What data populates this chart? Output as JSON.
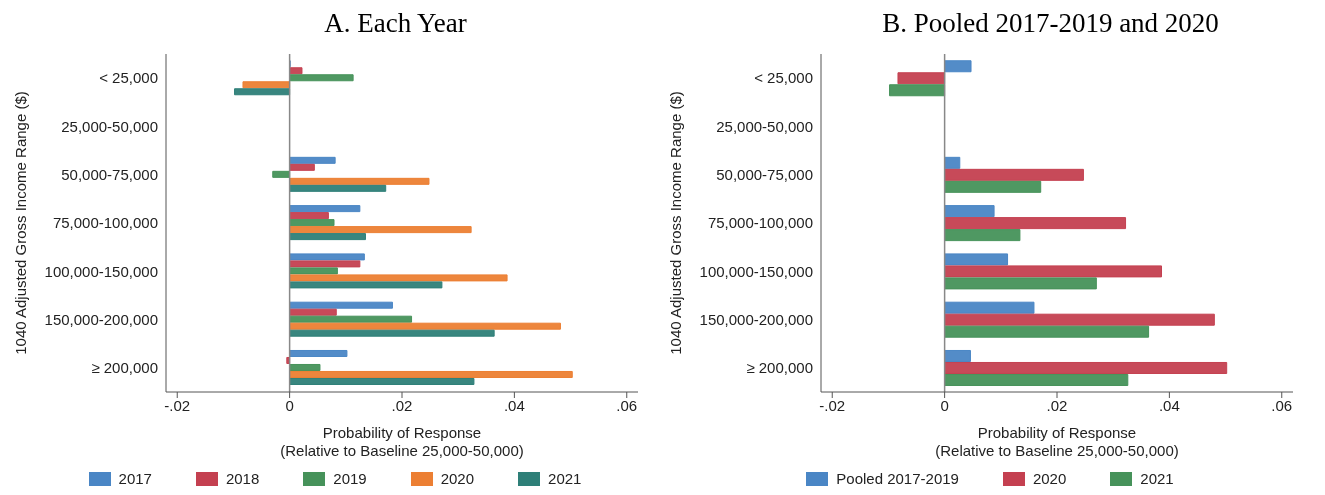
{
  "chart_data": [
    {
      "type": "bar",
      "orientation": "horizontal",
      "title": "A. Each Year",
      "ylabel": "1040 Adjusted Gross Income Range ($)",
      "xlabel": "Probability of Response\n(Relative to Baseline 25,000-50,000)",
      "categories": [
        "< 25,000",
        "25,000-50,000",
        "50,000-75,000",
        "75,000-100,000",
        "100,000-150,000",
        "150,000-200,000",
        "≥ 200,000"
      ],
      "series": [
        {
          "name": "2017",
          "color": "#4a86c5",
          "values": [
            0.0001,
            0,
            0.0081,
            0.0125,
            0.0133,
            0.0183,
            0.0102
          ]
        },
        {
          "name": "2018",
          "color": "#c44050",
          "values": [
            0.0022,
            0,
            0.0044,
            0.0069,
            0.0125,
            0.0083,
            -0.0005
          ]
        },
        {
          "name": "2019",
          "color": "#46925a",
          "values": [
            0.0113,
            0,
            -0.003,
            0.0079,
            0.0085,
            0.0217,
            0.0054
          ]
        },
        {
          "name": "2020",
          "color": "#ec7f33",
          "values": [
            -0.0083,
            0,
            0.0248,
            0.0323,
            0.0387,
            0.0482,
            0.0503
          ]
        },
        {
          "name": "2021",
          "color": "#2e7f78",
          "values": [
            -0.0098,
            0,
            0.0171,
            0.0135,
            0.0271,
            0.0364,
            0.0328
          ]
        }
      ],
      "xlim": [
        -0.022,
        0.062
      ],
      "xticks": [
        {
          "value": -0.02,
          "label": "-.02"
        },
        0,
        {
          "value": 0.02,
          "label": ".02"
        },
        {
          "value": 0.04,
          "label": ".04"
        },
        {
          "value": 0.06,
          "label": ".06"
        }
      ],
      "ref_lines": [
        {
          "axis": "x",
          "value": 0,
          "color": "#888888"
        }
      ],
      "grid": false,
      "legend": "bottom"
    },
    {
      "type": "bar",
      "orientation": "horizontal",
      "title": "B. Pooled 2017-2019 and 2020",
      "ylabel": "1040 Adjusted Gross Income Range ($)",
      "xlabel": "Probability of Response\n(Relative to Baseline 25,000-50,000)",
      "categories": [
        "< 25,000",
        "25,000-50,000",
        "50,000-75,000",
        "75,000-100,000",
        "100,000-150,000",
        "150,000-200,000",
        "≥ 200,000"
      ],
      "series": [
        {
          "name": "Pooled 2017-2019",
          "color": "#4a86c5",
          "values": [
            0.0047,
            0,
            0.0027,
            0.0088,
            0.0112,
            0.0159,
            0.0046
          ]
        },
        {
          "name": "2020",
          "color": "#c44050",
          "values": [
            -0.0083,
            0,
            0.0247,
            0.0322,
            0.0386,
            0.048,
            0.0502
          ]
        },
        {
          "name": "2021",
          "color": "#46925a",
          "values": [
            -0.0098,
            0,
            0.0171,
            0.0134,
            0.027,
            0.0363,
            0.0326
          ]
        }
      ],
      "xlim": [
        -0.022,
        0.062
      ],
      "xticks": [
        {
          "value": -0.02,
          "label": "-.02"
        },
        0,
        {
          "value": 0.02,
          "label": ".02"
        },
        {
          "value": 0.04,
          "label": ".04"
        },
        {
          "value": 0.06,
          "label": ".06"
        }
      ],
      "ref_lines": [
        {
          "axis": "x",
          "value": 0,
          "color": "#888888"
        }
      ],
      "grid": false,
      "legend": "bottom"
    }
  ]
}
